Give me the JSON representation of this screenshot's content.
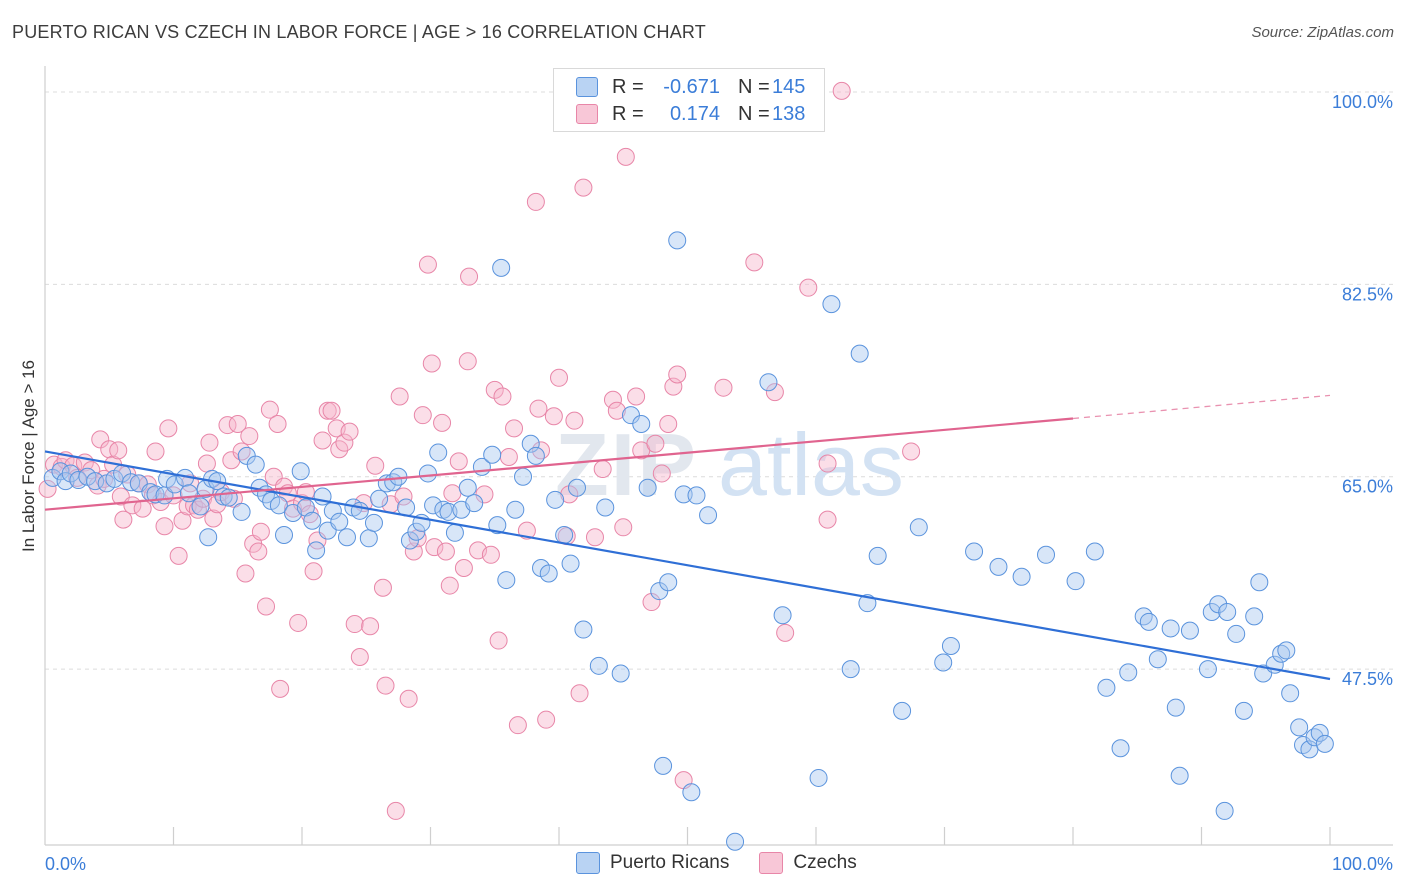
{
  "title": "PUERTO RICAN VS CZECH IN LABOR FORCE | AGE > 16 CORRELATION CHART",
  "source": "Source: ZipAtlas.com",
  "watermark": {
    "zip": "ZIP",
    "atlas": "atlas"
  },
  "legend": {
    "rows": [
      {
        "r_label": "R =",
        "r_value": "-0.671",
        "n_label": "N =",
        "n_value": "145"
      },
      {
        "r_label": "R =",
        "r_value": "0.174",
        "n_label": "N =",
        "n_value": "138"
      }
    ]
  },
  "bottom_legend": [
    "Puerto Ricans",
    "Czechs"
  ],
  "colors": {
    "blue_fill": "#a9c8f0",
    "blue_stroke": "#5a93dd",
    "blue_line": "#2f6fd6",
    "pink_fill": "#f6b6cb",
    "pink_stroke": "#e886a8",
    "pink_line": "#e0648f",
    "axis_text": "#3b7dd8"
  },
  "chart_data": {
    "type": "scatter",
    "title": "PUERTO RICAN VS CZECH IN LABOR FORCE | AGE > 16 CORRELATION CHART",
    "xlabel": "",
    "ylabel": "In Labor Force | Age > 16",
    "xlim": [
      0,
      100
    ],
    "ylim": [
      31.5,
      102
    ],
    "x_tick_labels": [
      "0.0%",
      "100.0%"
    ],
    "y_ticks": [
      47.5,
      65.0,
      82.5,
      100.0
    ],
    "y_tick_labels": [
      "47.5%",
      "65.0%",
      "82.5%",
      "100.0%"
    ],
    "grid": true,
    "legend_position": "top-center",
    "series": [
      {
        "name": "Puerto Ricans",
        "r": -0.671,
        "n": 145,
        "trend": {
          "x": [
            0,
            100
          ],
          "y": [
            67.3,
            46.6
          ]
        },
        "points": [
          [
            0.6,
            64.9
          ],
          [
            1.2,
            65.5
          ],
          [
            1.6,
            64.6
          ],
          [
            2.0,
            65.3
          ],
          [
            2.6,
            64.7
          ],
          [
            3.3,
            65.0
          ],
          [
            3.9,
            64.6
          ],
          [
            4.8,
            64.4
          ],
          [
            5.4,
            64.8
          ],
          [
            6.0,
            65.3
          ],
          [
            6.7,
            64.5
          ],
          [
            7.3,
            64.4
          ],
          [
            8.2,
            63.6
          ],
          [
            8.6,
            63.4
          ],
          [
            9.3,
            63.3
          ],
          [
            9.5,
            64.8
          ],
          [
            10.1,
            64.3
          ],
          [
            10.9,
            64.9
          ],
          [
            11.2,
            63.5
          ],
          [
            12.1,
            62.3
          ],
          [
            12.5,
            63.9
          ],
          [
            12.7,
            59.5
          ],
          [
            13.0,
            64.8
          ],
          [
            13.4,
            64.6
          ],
          [
            13.9,
            63.2
          ],
          [
            14.3,
            63.1
          ],
          [
            15.3,
            61.8
          ],
          [
            15.7,
            66.9
          ],
          [
            16.4,
            66.1
          ],
          [
            16.7,
            64.0
          ],
          [
            17.2,
            63.4
          ],
          [
            17.6,
            62.8
          ],
          [
            18.2,
            62.4
          ],
          [
            18.6,
            59.7
          ],
          [
            19.3,
            61.7
          ],
          [
            19.9,
            65.5
          ],
          [
            20.3,
            62.2
          ],
          [
            20.8,
            61.0
          ],
          [
            21.1,
            58.3
          ],
          [
            21.6,
            63.2
          ],
          [
            22.0,
            60.1
          ],
          [
            22.4,
            61.9
          ],
          [
            22.9,
            60.9
          ],
          [
            23.5,
            59.5
          ],
          [
            24.0,
            62.2
          ],
          [
            24.5,
            61.9
          ],
          [
            25.2,
            59.4
          ],
          [
            25.6,
            60.8
          ],
          [
            26.0,
            63.0
          ],
          [
            26.6,
            64.4
          ],
          [
            27.1,
            64.5
          ],
          [
            27.5,
            65.0
          ],
          [
            28.1,
            62.2
          ],
          [
            28.4,
            59.2
          ],
          [
            28.9,
            60.0
          ],
          [
            29.3,
            60.8
          ],
          [
            29.8,
            65.3
          ],
          [
            30.2,
            62.4
          ],
          [
            30.6,
            67.2
          ],
          [
            31.0,
            62.0
          ],
          [
            31.4,
            61.8
          ],
          [
            31.9,
            59.9
          ],
          [
            32.4,
            62.0
          ],
          [
            32.9,
            64.0
          ],
          [
            33.4,
            62.6
          ],
          [
            34.0,
            65.9
          ],
          [
            34.8,
            67.0
          ],
          [
            35.2,
            60.6
          ],
          [
            35.5,
            84.0
          ],
          [
            35.9,
            55.6
          ],
          [
            36.6,
            62.0
          ],
          [
            37.2,
            65.0
          ],
          [
            37.8,
            68.0
          ],
          [
            38.2,
            66.9
          ],
          [
            38.6,
            56.7
          ],
          [
            39.2,
            56.2
          ],
          [
            39.7,
            62.9
          ],
          [
            40.4,
            59.7
          ],
          [
            40.9,
            57.1
          ],
          [
            41.4,
            64.0
          ],
          [
            41.9,
            51.1
          ],
          [
            43.1,
            47.8
          ],
          [
            43.6,
            62.2
          ],
          [
            44.8,
            47.1
          ],
          [
            45.6,
            70.6
          ],
          [
            46.4,
            69.8
          ],
          [
            46.9,
            64.0
          ],
          [
            47.8,
            54.6
          ],
          [
            48.1,
            38.7
          ],
          [
            48.5,
            55.4
          ],
          [
            49.2,
            86.5
          ],
          [
            49.7,
            63.4
          ],
          [
            50.3,
            36.3
          ],
          [
            50.7,
            63.3
          ],
          [
            51.6,
            61.5
          ],
          [
            53.7,
            31.8
          ],
          [
            56.3,
            73.6
          ],
          [
            57.4,
            52.4
          ],
          [
            60.2,
            37.6
          ],
          [
            61.2,
            80.7
          ],
          [
            62.7,
            47.5
          ],
          [
            63.4,
            76.2
          ],
          [
            64.0,
            53.5
          ],
          [
            64.8,
            57.8
          ],
          [
            66.7,
            43.7
          ],
          [
            68.0,
            60.4
          ],
          [
            69.9,
            48.1
          ],
          [
            70.5,
            49.6
          ],
          [
            72.3,
            58.2
          ],
          [
            74.2,
            56.8
          ],
          [
            76.0,
            55.9
          ],
          [
            77.9,
            57.9
          ],
          [
            80.2,
            55.5
          ],
          [
            81.7,
            58.2
          ],
          [
            82.6,
            45.8
          ],
          [
            83.7,
            40.3
          ],
          [
            84.3,
            47.2
          ],
          [
            85.5,
            52.3
          ],
          [
            85.9,
            51.8
          ],
          [
            86.6,
            48.4
          ],
          [
            87.6,
            51.2
          ],
          [
            88.0,
            44.0
          ],
          [
            88.3,
            37.8
          ],
          [
            89.1,
            51.0
          ],
          [
            90.5,
            47.5
          ],
          [
            90.8,
            52.7
          ],
          [
            91.3,
            53.4
          ],
          [
            91.8,
            34.6
          ],
          [
            92.0,
            52.7
          ],
          [
            92.7,
            50.7
          ],
          [
            93.3,
            43.7
          ],
          [
            94.1,
            52.3
          ],
          [
            94.5,
            55.4
          ],
          [
            94.8,
            47.1
          ],
          [
            95.7,
            47.9
          ],
          [
            96.2,
            48.9
          ],
          [
            96.6,
            49.2
          ],
          [
            96.9,
            45.3
          ],
          [
            97.6,
            42.2
          ],
          [
            97.9,
            40.6
          ],
          [
            98.4,
            40.2
          ],
          [
            98.8,
            41.3
          ],
          [
            99.2,
            41.7
          ],
          [
            99.6,
            40.7
          ]
        ]
      },
      {
        "name": "Czechs",
        "r": 0.174,
        "n": 138,
        "trend": {
          "x": [
            0,
            80
          ],
          "y": [
            62.0,
            70.3
          ]
        },
        "trend_dashed": {
          "x": [
            80,
            100
          ],
          "y": [
            70.3,
            72.4
          ]
        },
        "points": [
          [
            0.2,
            63.9
          ],
          [
            0.7,
            66.1
          ],
          [
            1.3,
            65.9
          ],
          [
            1.6,
            66.5
          ],
          [
            2.2,
            66.0
          ],
          [
            2.5,
            64.9
          ],
          [
            3.1,
            66.3
          ],
          [
            3.6,
            65.6
          ],
          [
            4.1,
            64.2
          ],
          [
            4.3,
            68.4
          ],
          [
            4.6,
            64.8
          ],
          [
            5.0,
            67.5
          ],
          [
            5.3,
            66.1
          ],
          [
            5.7,
            67.4
          ],
          [
            5.9,
            63.2
          ],
          [
            6.1,
            61.1
          ],
          [
            6.4,
            65.2
          ],
          [
            6.8,
            62.4
          ],
          [
            7.3,
            64.4
          ],
          [
            7.6,
            62.1
          ],
          [
            8.0,
            64.3
          ],
          [
            8.4,
            63.3
          ],
          [
            8.6,
            67.3
          ],
          [
            9.0,
            62.7
          ],
          [
            9.3,
            60.5
          ],
          [
            9.6,
            69.4
          ],
          [
            10.0,
            63.3
          ],
          [
            10.4,
            57.8
          ],
          [
            10.7,
            61.0
          ],
          [
            11.1,
            62.3
          ],
          [
            11.3,
            64.4
          ],
          [
            11.6,
            62.4
          ],
          [
            11.9,
            62.0
          ],
          [
            12.3,
            63.0
          ],
          [
            12.6,
            66.2
          ],
          [
            12.8,
            68.1
          ],
          [
            13.1,
            61.2
          ],
          [
            13.4,
            62.5
          ],
          [
            13.7,
            63.6
          ],
          [
            14.2,
            69.7
          ],
          [
            14.5,
            66.5
          ],
          [
            14.7,
            63.0
          ],
          [
            15.0,
            69.8
          ],
          [
            15.3,
            67.3
          ],
          [
            15.6,
            56.2
          ],
          [
            15.9,
            68.7
          ],
          [
            16.2,
            58.9
          ],
          [
            16.6,
            58.2
          ],
          [
            16.8,
            60.0
          ],
          [
            17.2,
            53.2
          ],
          [
            17.5,
            71.1
          ],
          [
            17.8,
            65.0
          ],
          [
            18.1,
            69.8
          ],
          [
            18.3,
            45.7
          ],
          [
            18.6,
            64.1
          ],
          [
            18.9,
            63.5
          ],
          [
            19.3,
            62.1
          ],
          [
            19.7,
            51.7
          ],
          [
            20.0,
            62.6
          ],
          [
            20.3,
            63.6
          ],
          [
            20.6,
            61.6
          ],
          [
            20.9,
            56.4
          ],
          [
            21.2,
            59.2
          ],
          [
            21.6,
            68.3
          ],
          [
            22.0,
            71.0
          ],
          [
            22.3,
            71.0
          ],
          [
            22.7,
            69.4
          ],
          [
            22.9,
            67.5
          ],
          [
            23.3,
            68.1
          ],
          [
            23.7,
            69.1
          ],
          [
            24.1,
            51.6
          ],
          [
            24.5,
            48.6
          ],
          [
            24.8,
            62.6
          ],
          [
            25.3,
            51.4
          ],
          [
            25.7,
            66.0
          ],
          [
            26.3,
            54.9
          ],
          [
            26.5,
            46.0
          ],
          [
            26.9,
            62.5
          ],
          [
            27.3,
            34.6
          ],
          [
            27.6,
            72.3
          ],
          [
            27.9,
            63.2
          ],
          [
            28.3,
            44.8
          ],
          [
            28.7,
            58.2
          ],
          [
            29.0,
            59.4
          ],
          [
            29.4,
            70.6
          ],
          [
            29.8,
            84.3
          ],
          [
            30.1,
            75.3
          ],
          [
            30.3,
            58.6
          ],
          [
            30.9,
            69.9
          ],
          [
            31.2,
            58.2
          ],
          [
            31.5,
            55.1
          ],
          [
            31.7,
            63.5
          ],
          [
            32.2,
            66.4
          ],
          [
            32.6,
            56.7
          ],
          [
            32.9,
            75.5
          ],
          [
            33.0,
            83.2
          ],
          [
            33.7,
            58.3
          ],
          [
            34.2,
            63.4
          ],
          [
            34.7,
            57.9
          ],
          [
            35.0,
            72.9
          ],
          [
            35.3,
            50.1
          ],
          [
            35.6,
            72.3
          ],
          [
            36.1,
            66.8
          ],
          [
            36.5,
            69.4
          ],
          [
            36.8,
            42.4
          ],
          [
            37.5,
            60.1
          ],
          [
            38.2,
            90.0
          ],
          [
            38.4,
            71.2
          ],
          [
            38.6,
            67.4
          ],
          [
            39.0,
            42.9
          ],
          [
            39.6,
            70.5
          ],
          [
            40.0,
            74.0
          ],
          [
            40.6,
            59.6
          ],
          [
            40.8,
            63.4
          ],
          [
            41.2,
            70.1
          ],
          [
            41.6,
            45.3
          ],
          [
            41.9,
            91.3
          ],
          [
            42.8,
            59.5
          ],
          [
            43.4,
            65.7
          ],
          [
            44.2,
            72.0
          ],
          [
            44.5,
            71.0
          ],
          [
            45.0,
            60.4
          ],
          [
            45.2,
            94.1
          ],
          [
            46.0,
            72.3
          ],
          [
            46.4,
            67.4
          ],
          [
            47.2,
            53.6
          ],
          [
            47.5,
            68.0
          ],
          [
            48.0,
            65.3
          ],
          [
            48.5,
            69.8
          ],
          [
            48.9,
            73.2
          ],
          [
            49.2,
            74.3
          ],
          [
            49.7,
            37.4
          ],
          [
            52.8,
            73.1
          ],
          [
            55.2,
            84.5
          ],
          [
            56.8,
            72.7
          ],
          [
            57.6,
            50.8
          ],
          [
            59.4,
            82.2
          ],
          [
            60.9,
            66.2
          ],
          [
            60.9,
            61.1
          ],
          [
            62.0,
            100.1
          ],
          [
            67.4,
            67.3
          ]
        ]
      }
    ]
  }
}
